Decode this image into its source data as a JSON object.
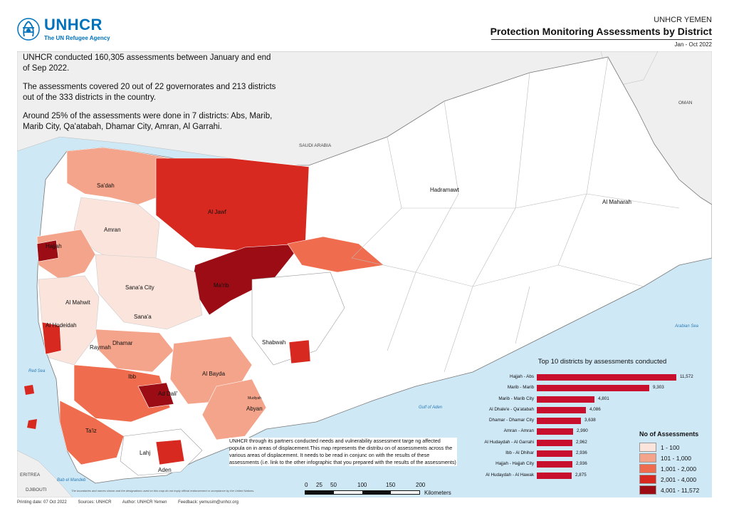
{
  "logo": {
    "name": "UNHCR",
    "tagline": "The UN Refugee Agency"
  },
  "header": {
    "office": "UNHCR YEMEN",
    "title": "Protection Monitoring Assessments by District",
    "period": "Jan - Oct 2022"
  },
  "intro": {
    "p1": "UNHCR conducted 160,305 assessments between January and end of Sep 2022.",
    "p2": "The assessments covered 20 out of 22 governorates and 213 districts out of the 333 districts in the country.",
    "p3": "Around 25% of the assessments were done in 7 districts: Abs, Marib, Marib City, Qa'atabah, Dhamar City, Amran, Al Garrahi."
  },
  "map_labels": {
    "saudi_arabia": "SAUDI ARABIA",
    "oman": "OMAN",
    "eritrea": "ERITREA",
    "djibouti": "DJIBOUTI",
    "red_sea": "Red Sea",
    "arabian_sea": "Arabian Sea",
    "gulf_of_aden": "Gulf of Aden",
    "bab_el_mandeb": "Bab el Mandeb",
    "sadah": "Sa'dah",
    "al_jawf": "Al Jawf",
    "hadramawt": "Hadramawt",
    "al_maharah": "Al Maharah",
    "amran": "Amran",
    "hajjah": "Hajjah",
    "sanaa_city": "Sana'a City",
    "al_mahwit": "Al Mahwit",
    "sanaa": "Sana'a",
    "marib": "Ma'rib",
    "al_hodeidah": "Al Hodeidah",
    "raymah": "Raymah",
    "dhamar": "Dhamar",
    "ibb": "Ibb",
    "al_bayda": "Al Bayda",
    "ad_dali": "Ad Dali'",
    "shabwah": "Shabwah",
    "abyan": "Abyan",
    "taiz": "Ta'iz",
    "lahj": "Lahj",
    "aden": "Aden",
    "mudiyah": "Mudiyah"
  },
  "chart_data": {
    "type": "bar",
    "title": "Top 10 districts by assessments conducted",
    "categories": [
      "Hajjah - Abs",
      "Marib - Marib",
      "Marib - Marib City",
      "Al Dhale'e - Qa'atabah",
      "Dhamar - Dhamar City",
      "Amran - Amran",
      "Al Hudaydah - Al Garrahi",
      "Ibb - Al Dhihar",
      "Hajjah - Hajjah City",
      "Al Hudaydah - Al Hawak"
    ],
    "values": [
      11572,
      9303,
      4801,
      4086,
      3638,
      2990,
      2962,
      2936,
      2936,
      2875
    ],
    "value_labels": [
      "11,572",
      "9,303",
      "4,801",
      "4,086",
      "3,638",
      "2,990",
      "2,962",
      "2,936",
      "2,936",
      "2,875"
    ],
    "bar_color": "#c8102e",
    "xlim": [
      0,
      11572
    ]
  },
  "legend": {
    "title": "No of Assessments",
    "items": [
      {
        "label": "1 - 100",
        "color": "#fbe4dc"
      },
      {
        "label": "101 - 1,000",
        "color": "#f4a48a"
      },
      {
        "label": "1,001 - 2,000",
        "color": "#ef6d4e"
      },
      {
        "label": "2,001 - 4,000",
        "color": "#d7291f"
      },
      {
        "label": "4,001 - 11,572",
        "color": "#9b0c14"
      }
    ]
  },
  "note": "UNHCR through its partners conducted needs and vulnerability assessment targe  ng affected popula  on in areas of displacement.This map represents the distribu  on of assessments across the various areas of displacement. It needs to be read in conjunc  on with the results of these assessments (i.e. link to the other infographic that you prepared with the results of the assessments)",
  "scale": {
    "ticks": [
      "0",
      "25",
      "50",
      "100",
      "150",
      "200"
    ],
    "unit": "Kilometers"
  },
  "disclaimer": "The boundaries and names shown and the designations used on this map do not imply official endorsement or acceptance by the United Nations.",
  "footer": {
    "printing_date": "Printing date: 07 Oct 2022",
    "sources": "Sources: UNHCR",
    "author": "Author: UNHCR Yemen",
    "feedback": "Feedback: yemusim@unhcr.org"
  },
  "colors": {
    "sea": "#cfe8f6",
    "neighbour_land": "#efefef",
    "yemen_base": "#ffffff",
    "accent": "#0072bc"
  }
}
